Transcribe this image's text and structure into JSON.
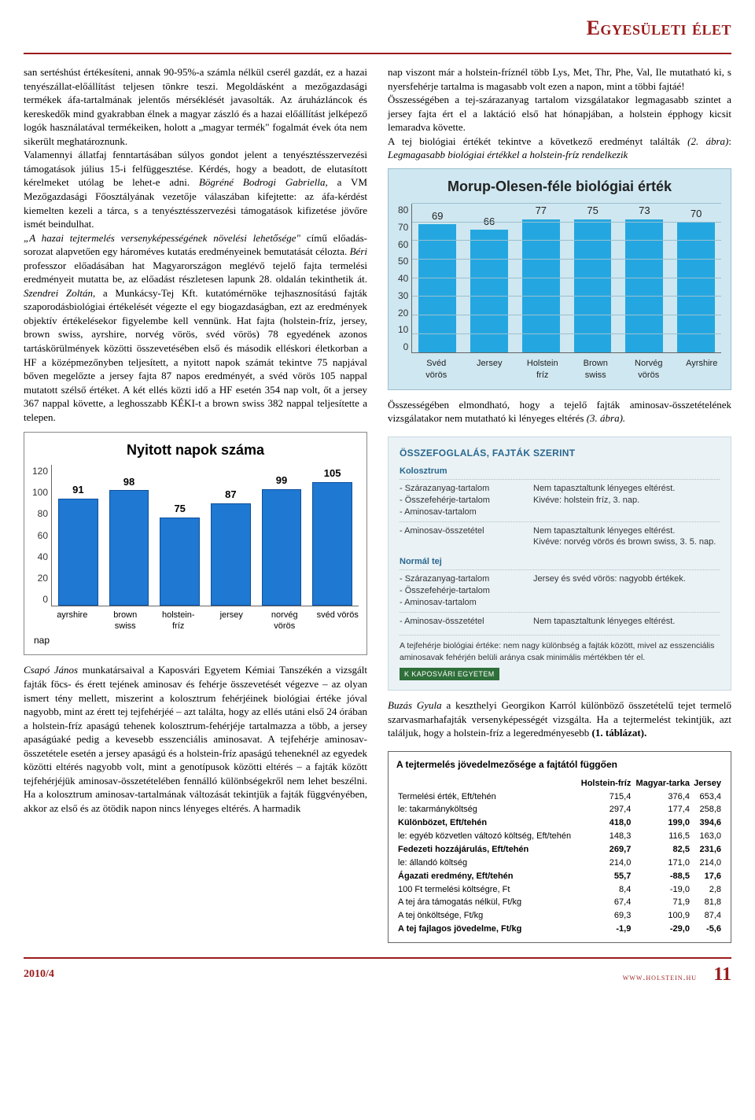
{
  "header": {
    "title": "Egyesületi élet"
  },
  "left": {
    "para1": "san sertéshúst értékesíteni, annak 90-95%-a számla nélkül cserél gazdát, ez a hazai tenyészállat-előállítást teljesen tönkre teszi. Megoldásként a mezőgazdasági termékek áfa-tartalmának jelentős mérséklését javasolták. Az áruházláncok és kereskedők mind gyakrabban élnek a magyar zászló és a hazai előállítást jelképező logók használatával termékeiken, holott a „magyar termék\" fogalmát évek óta nem sikerült meghatároznunk.",
    "para2": "Valamennyi állatfaj fenntartásában súlyos gondot jelent a tenyésztésszervezési támogatások július 15-i felfüggesztése. Kérdés, hogy a beadott, de elutasított kérelmeket utólag be lehet-e adni. ",
    "para2b": "Bögréné Bodrogi Gabriella,",
    "para2c": " a VM Mezőgazdasági Főosztályának vezetője válaszában kifejtette: az áfa-kérdést kiemelten kezeli a tárca, s a tenyésztésszervezési támogatások kifizetése jövőre ismét beindulhat.",
    "para3a": "„A hazai tejtermelés versenyképességének növelési lehetősége\"",
    "para3b": " című előadás-sorozat alapvetően egy hároméves kutatás eredményeinek bemutatását célozta. ",
    "para3c": "Béri",
    "para3d": " professzor előadásában hat Magyarországon meglévő tejelő fajta termelési eredményeit mutatta be, az előadást részletesen lapunk 28. oldalán tekinthetik át. ",
    "para3e": "Szendrei Zoltán",
    "para3f": ", a Munkácsy-Tej Kft. kutatómérnöke tejhasznosítású fajták szaporodásbiológiai értékelését végezte el egy biogazdaságban, ezt az eredmények objektív értékelésekor figyelembe kell vennünk. Hat fajta (holstein-fríz, jersey, brown swiss, ayrshire, norvég vörös, svéd vörös) 78 egyedének azonos tartáskörülmények közötti összevetésében első és második elléskori életkorban a HF a középmezőnyben teljesített, a nyitott napok számát tekintve 75 napjával bőven megelőzte a jersey fajta 87 napos eredményét, a svéd vörös 105 nappal mutatott szélső értéket. A két ellés közti idő a HF esetén 354 nap volt, őt a jersey 367 nappal követte, a leghosszabb KÉKI-t a brown swiss 382 nappal teljesítette a telepen.",
    "para4a": "Csapó János",
    "para4b": " munkatársaival a Kaposvári Egyetem Kémiai Tanszékén a vizsgált fajták föcs- és érett tejének aminosav és fehérje összevetését végezve – az olyan ismert tény mellett, miszerint a kolosztrum fehérjéinek biológiai értéke jóval nagyobb, mint az érett tej tejfehérjéé – azt találta, hogy az ellés utáni első 24 órában a holstein-fríz apaságú tehenek kolosztrum-fehérjéje tartalmazza a több, a jersey apaságúaké pedig a kevesebb esszenciális aminosavat. A tejfehérje aminosav-összetétele esetén a jersey apaságú és a holstein-fríz apaságú teheneknél az egyedek közötti eltérés nagyobb volt, mint a genotípusok közötti eltérés – a fajták között tejfehérjéjük aminosav-összetételében fennálló különbségekről nem lehet beszélni. Ha a kolosztrum aminosav-tartalmának változását tekintjük a fajták függvényében, akkor az első és az ötödik napon nincs lényeges eltérés. A harmadik"
  },
  "right": {
    "para1": "nap viszont már a holstein-fríznél több Lys, Met, Thr, Phe, Val, Ile mutatható ki, s nyersfehérje tartalma is magasabb volt ezen a napon, mint a többi fajtáé!",
    "para2": "Összességében a tej-szárazanyag tartalom vizsgálatakor legmagasabb szintet a jersey fajta ért el a laktáció első hat hónapjában, a holstein épphogy kicsit lemaradva követte.",
    "para3a": "A tej biológiai értékét tekintve a következő eredményt találták ",
    "para3b": "(2. ábra)",
    "para3c": ": ",
    "para3d": "Legmagasabb biológiai értékkel a holstein-fríz rendelkezik",
    "para4a": "Összességében elmondható, hogy a tejelő fajták aminosav-összetételének vizsgálatakor nem mutatható ki lényeges eltérés ",
    "para4b": "(3. ábra).",
    "para5a": "Buzás Gyula",
    "para5b": " a keszthelyi Georgikon Karról különböző összetételű tejet termelő szarvasmarhafajták versenyképességét vizsgálta. Ha a tejtermelést tekintjük, azt találjuk, hogy a holstein-fríz a legeredményesebb ",
    "para5c": "(1. táblázat)."
  },
  "chart_left": {
    "title": "Nyitott napok száma",
    "ylim": [
      0,
      120
    ],
    "ytick_step": 20,
    "y_ticks": [
      "0",
      "20",
      "40",
      "60",
      "80",
      "100",
      "120"
    ],
    "x_axis_label": "nap",
    "bar_color": "#1f78d1",
    "border_color": "#888888",
    "categories": [
      "ayrshire",
      "brown swiss",
      "holstein-fríz",
      "jersey",
      "norvég vörös",
      "svéd vörös"
    ],
    "values": [
      91,
      98,
      75,
      87,
      99,
      105
    ]
  },
  "chart_right": {
    "title": "Morup-Olesen-féle biológiai érték",
    "ylim": [
      0,
      80
    ],
    "ytick_step": 10,
    "y_ticks": [
      "0",
      "10",
      "20",
      "30",
      "40",
      "50",
      "60",
      "70",
      "80"
    ],
    "panel_bg": "#cfe7f0",
    "bar_color": "#24a7e0",
    "categories": [
      "Svéd vörös",
      "Jersey",
      "Holstein fríz",
      "Brown swiss",
      "Norvég vörös",
      "Ayrshire"
    ],
    "values": [
      69,
      66,
      77,
      75,
      73,
      70
    ]
  },
  "summary": {
    "title": "ÖSSZEFOGLALÁS, FAJTÁK SZERINT",
    "s1": "Kolosztrum",
    "rows1": [
      {
        "l": "- Szárazanyag-tartalom\n- Összefehérje-tartalom\n- Aminosav-tartalom",
        "r": "Nem tapasztaltunk lényeges eltérést.\nKivéve: holstein fríz, 3. nap."
      },
      {
        "l": "- Aminosav-összetétel",
        "r": "Nem tapasztaltunk lényeges eltérést.\nKivéve: norvég vörös és brown swiss, 3. 5. nap."
      }
    ],
    "s2": "Normál tej",
    "rows2": [
      {
        "l": "- Szárazanyag-tartalom\n- Összefehérje-tartalom\n- Aminosav-tartalom",
        "r": "Jersey és svéd vörös: nagyobb értékek."
      },
      {
        "l": "- Aminosav-összetétel",
        "r": "Nem tapasztaltunk lényeges eltérést."
      }
    ],
    "note": "A tejfehérje biológiai értéke: nem nagy különbség a fajták között, mivel az esszenciális aminosavak fehérjén belüli aránya csak minimális mértékben tér el.",
    "badge": "K   KAPOSVÁRI EGYETEM"
  },
  "table": {
    "title": "A tejtermelés jövedelmezősége a fajtától függően",
    "columns": [
      "",
      "Holstein-fríz",
      "Magyar-tarka",
      "Jersey"
    ],
    "rows": [
      {
        "c": [
          "Termelési érték, Eft/tehén",
          "715,4",
          "376,4",
          "653,4"
        ],
        "bold": false
      },
      {
        "c": [
          "le: takarmányköltség",
          "297,4",
          "177,4",
          "258,8"
        ],
        "bold": false
      },
      {
        "c": [
          "Különbözet, Eft/tehén",
          "418,0",
          "199,0",
          "394,6"
        ],
        "bold": true
      },
      {
        "c": [
          "le: egyéb közvetlen változó költség, Eft/tehén",
          "148,3",
          "116,5",
          "163,0"
        ],
        "bold": false
      },
      {
        "c": [
          "Fedezeti hozzájárulás, Eft/tehén",
          "269,7",
          "82,5",
          "231,6"
        ],
        "bold": true
      },
      {
        "c": [
          "le: állandó költség",
          "214,0",
          "171,0",
          "214,0"
        ],
        "bold": false
      },
      {
        "c": [
          "Ágazati eredmény, Eft/tehén",
          "55,7",
          "-88,5",
          "17,6"
        ],
        "bold": true
      },
      {
        "c": [
          "   100 Ft termelési költségre, Ft",
          "8,4",
          "-19,0",
          "2,8"
        ],
        "bold": false
      },
      {
        "c": [
          "A tej ára támogatás nélkül, Ft/kg",
          "67,4",
          "71,9",
          "81,8"
        ],
        "bold": false
      },
      {
        "c": [
          "A tej önköltsége, Ft/kg",
          "69,3",
          "100,9",
          "87,4"
        ],
        "bold": false
      },
      {
        "c": [
          "A tej fajlagos jövedelme, Ft/kg",
          "-1,9",
          "-29,0",
          "-5,6"
        ],
        "bold": true
      }
    ]
  },
  "footer": {
    "issue": "2010/4",
    "site": "www.holstein.hu",
    "page": "11"
  }
}
